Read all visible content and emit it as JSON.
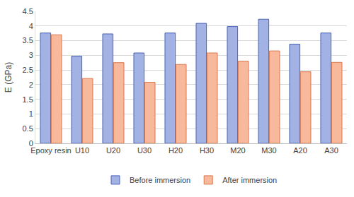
{
  "chart_data": {
    "type": "bar",
    "y_label": "E (GPa)",
    "categories": [
      "Epoxy resin",
      "U10",
      "U20",
      "U30",
      "H20",
      "H30",
      "M20",
      "M30",
      "A20",
      "A30"
    ],
    "series": [
      {
        "name": "Before immersion",
        "color": "#a3b2e4",
        "values": [
          3.76,
          2.97,
          3.73,
          3.08,
          3.76,
          4.09,
          3.98,
          4.23,
          3.38,
          3.76
        ]
      },
      {
        "name": "After immersion",
        "color": "#f7b89b",
        "values": [
          3.7,
          2.21,
          2.75,
          2.08,
          2.69,
          3.08,
          2.8,
          3.15,
          2.44,
          2.76
        ]
      }
    ],
    "ylim": [
      0,
      4.5
    ],
    "yticks": [
      0,
      0.5,
      1,
      1.5,
      2,
      2.5,
      3,
      3.5,
      4,
      4.5
    ],
    "grid": true,
    "legend": "bottom"
  }
}
